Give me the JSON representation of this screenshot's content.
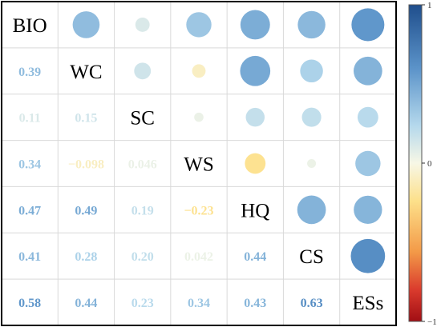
{
  "chart_data": {
    "type": "correlogram",
    "variables": [
      "BIO",
      "WC",
      "SC",
      "WS",
      "HQ",
      "CS",
      "ESs"
    ],
    "lower_display": "number",
    "upper_display": "circle",
    "matrix": [
      [
        null,
        0.39,
        0.11,
        0.34,
        0.47,
        0.41,
        0.58
      ],
      [
        0.39,
        null,
        0.15,
        -0.098,
        0.49,
        0.28,
        0.44
      ],
      [
        0.11,
        0.15,
        null,
        0.046,
        0.19,
        0.2,
        0.23
      ],
      [
        0.34,
        -0.098,
        0.046,
        null,
        -0.23,
        0.042,
        0.34
      ],
      [
        0.47,
        0.49,
        0.19,
        -0.23,
        null,
        0.44,
        0.43
      ],
      [
        0.41,
        0.28,
        0.2,
        0.042,
        0.44,
        null,
        0.63
      ],
      [
        0.58,
        0.44,
        0.23,
        0.34,
        0.43,
        0.63,
        null
      ]
    ],
    "lower_labels": [
      [
        "0.39"
      ],
      [
        "0.11",
        "0.15"
      ],
      [
        "0.34",
        "−0.098",
        "0.046"
      ],
      [
        "0.47",
        "0.49",
        "0.19",
        "−0.23"
      ],
      [
        "0.41",
        "0.28",
        "0.20",
        "0.042",
        "0.44"
      ],
      [
        "0.58",
        "0.44",
        "0.23",
        "0.34",
        "0.43",
        "0.63"
      ]
    ],
    "colorbar": {
      "range": [
        -1,
        1
      ],
      "ticks": [
        "1",
        "0",
        "−1"
      ],
      "colors": [
        "#2c5aa0",
        "#5a8cc8",
        "#a6cde6",
        "#f5f8e4",
        "#fddc7e",
        "#f28c3a",
        "#d6262a",
        "#a50f15"
      ]
    }
  }
}
